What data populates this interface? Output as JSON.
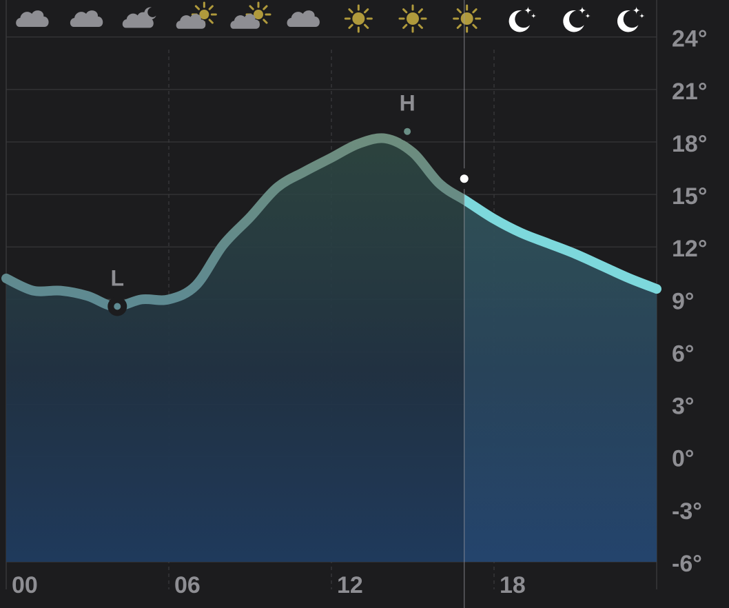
{
  "colors": {
    "background": "#1c1c1e",
    "grid": "#3a3a3c",
    "axis_text": "#8e8e93",
    "marker_text": "#8e8e93",
    "cloud": "#8e8e93",
    "sun": "#b09a3c",
    "moon": "#ffffff",
    "line_past": "#6a8f86",
    "line_future": "#7dd8dc"
  },
  "chart_data": {
    "type": "area",
    "ylim": [
      -6,
      25.8
    ],
    "xlim": [
      0,
      24
    ],
    "y_ticks": [
      24,
      21,
      18,
      15,
      12,
      9,
      6,
      3,
      0,
      -3,
      -6
    ],
    "y_tick_labels": [
      "24°",
      "21°",
      "18°",
      "15°",
      "12°",
      "9°",
      "6°",
      "3°",
      "0°",
      "-3°",
      "-6°"
    ],
    "x_ticks": [
      0,
      6,
      12,
      18
    ],
    "x_tick_labels": [
      "00",
      "06",
      "12",
      "18"
    ],
    "grid": true,
    "series": [
      {
        "x": [
          0,
          1,
          2,
          3,
          4,
          5,
          6,
          7,
          8,
          9,
          10,
          11,
          12,
          13,
          14,
          15,
          16,
          17,
          18,
          19,
          20,
          21,
          22,
          23,
          24
        ],
        "values": [
          10.2,
          9.5,
          9.5,
          9.2,
          8.6,
          9.0,
          9.0,
          9.8,
          12.1,
          13.7,
          15.4,
          16.3,
          17.1,
          17.9,
          18.2,
          17.4,
          15.6,
          14.6,
          13.6,
          12.8,
          12.2,
          11.6,
          10.9,
          10.2,
          9.6
        ]
      }
    ],
    "current": {
      "x": 16.9,
      "value": 15.9
    },
    "low": {
      "x": 4.1,
      "value": 8.6,
      "label": "L"
    },
    "high": {
      "x": 14.8,
      "value": 18.6,
      "label": "H"
    },
    "hourly_icons": [
      {
        "hour": 1,
        "icon": "cloud-icon"
      },
      {
        "hour": 3,
        "icon": "cloud-icon"
      },
      {
        "hour": 5,
        "icon": "cloud-moon-icon"
      },
      {
        "hour": 7,
        "icon": "cloud-sun-icon"
      },
      {
        "hour": 9,
        "icon": "cloud-sun-icon"
      },
      {
        "hour": 11,
        "icon": "cloud-icon"
      },
      {
        "hour": 13,
        "icon": "sun-icon"
      },
      {
        "hour": 15,
        "icon": "sun-icon"
      },
      {
        "hour": 17,
        "icon": "sun-icon"
      },
      {
        "hour": 19,
        "icon": "moon-stars-icon"
      },
      {
        "hour": 21,
        "icon": "moon-stars-icon"
      },
      {
        "hour": 23,
        "icon": "moon-stars-icon"
      }
    ]
  }
}
